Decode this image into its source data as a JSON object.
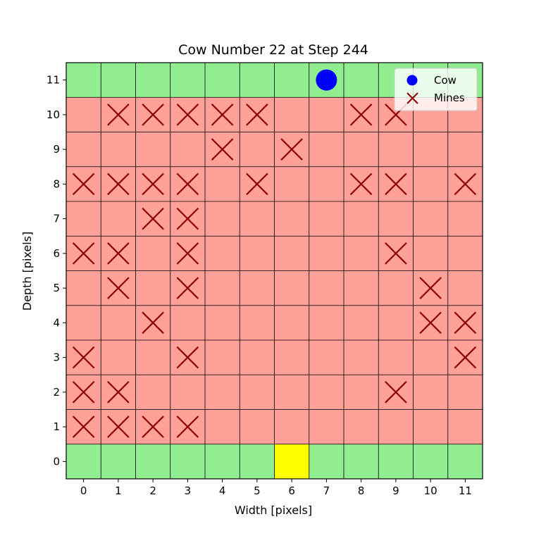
{
  "chart_data": {
    "type": "heatmap",
    "title": "Cow Number 22 at Step 244",
    "xlabel": "Width [pixels]",
    "ylabel": "Depth [pixels]",
    "grid": true,
    "legend_position": "top-right",
    "xlim": [
      -0.5,
      11.5
    ],
    "ylim": [
      -0.5,
      11.5
    ],
    "x_ticks": [
      "0",
      "1",
      "2",
      "3",
      "4",
      "5",
      "6",
      "7",
      "8",
      "9",
      "10",
      "11"
    ],
    "y_ticks": [
      "0",
      "1",
      "2",
      "3",
      "4",
      "5",
      "6",
      "7",
      "8",
      "9",
      "10",
      "11"
    ],
    "cell_colors": {
      "safe": "#90ee90",
      "mine_zone": "#ffa099",
      "goal": "#ffff00",
      "grid": "#000000"
    },
    "safe_rows": [
      0,
      11
    ],
    "goal": {
      "x": 6,
      "y": 0
    },
    "series": [
      {
        "name": "Cow",
        "marker": "circle",
        "color": "#0000ff",
        "points": [
          [
            7,
            11
          ]
        ]
      },
      {
        "name": "Mines",
        "marker": "x",
        "color": "#8b0000",
        "points": [
          [
            0,
            1
          ],
          [
            1,
            1
          ],
          [
            2,
            1
          ],
          [
            3,
            1
          ],
          [
            0,
            2
          ],
          [
            1,
            2
          ],
          [
            9,
            2
          ],
          [
            0,
            3
          ],
          [
            3,
            3
          ],
          [
            11,
            3
          ],
          [
            2,
            4
          ],
          [
            10,
            4
          ],
          [
            11,
            4
          ],
          [
            1,
            5
          ],
          [
            3,
            5
          ],
          [
            10,
            5
          ],
          [
            0,
            6
          ],
          [
            1,
            6
          ],
          [
            3,
            6
          ],
          [
            9,
            6
          ],
          [
            2,
            7
          ],
          [
            3,
            7
          ],
          [
            0,
            8
          ],
          [
            1,
            8
          ],
          [
            2,
            8
          ],
          [
            3,
            8
          ],
          [
            5,
            8
          ],
          [
            8,
            8
          ],
          [
            9,
            8
          ],
          [
            11,
            8
          ],
          [
            4,
            9
          ],
          [
            6,
            9
          ],
          [
            1,
            10
          ],
          [
            2,
            10
          ],
          [
            3,
            10
          ],
          [
            4,
            10
          ],
          [
            5,
            10
          ],
          [
            8,
            10
          ],
          [
            9,
            10
          ]
        ]
      }
    ]
  }
}
